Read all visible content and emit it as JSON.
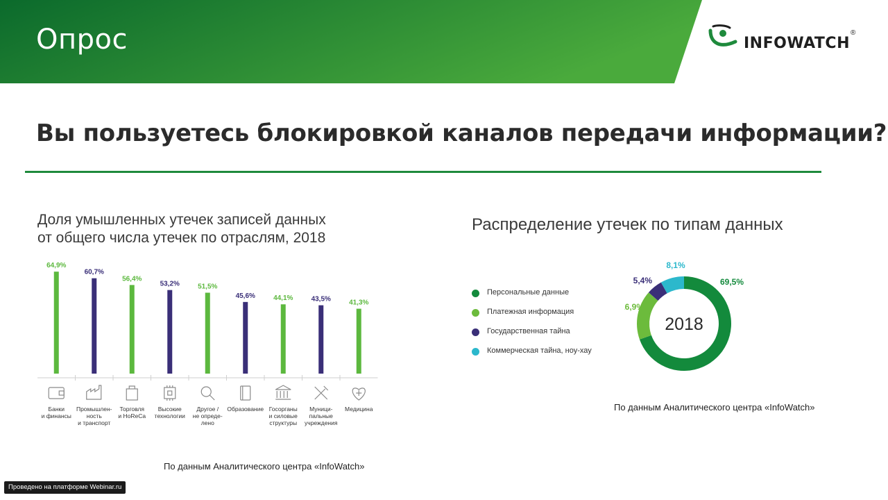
{
  "slide": {
    "title": "Опрос",
    "question": "Вы пользуетесь блокировкой каналов передачи информации?"
  },
  "logo": {
    "text": "INFOWATCH",
    "registered": "®",
    "icon": "infowatch-eye-icon"
  },
  "colors": {
    "header_green_dark": "#0b6a2c",
    "header_green_light": "#4aaa3c",
    "bar_green": "#5cb83e",
    "bar_navy": "#3a2f78",
    "donut_dark_green": "#138a3c",
    "donut_light_green": "#6cbb3c",
    "donut_navy": "#3a2f78",
    "donut_cyan": "#2cb8cc"
  },
  "chart_data": [
    {
      "type": "bar",
      "title": "Доля умышленных утечек записей данных\nот общего числа утечек по отраслям, 2018",
      "categories": [
        "Банки\nи финансы",
        "Промышлен-\nность\nи транспорт",
        "Торговля\nи HoReCa",
        "Высокие\nтехнологии",
        "Другое /\nне опреде-\nлено",
        "Образование",
        "Госорганы\nи силовые\nструктуры",
        "Муници-\nпальные\nучреждения",
        "Медицина"
      ],
      "category_icons": [
        "wallet-icon",
        "factory-icon",
        "shopping-bag-icon",
        "chip-icon",
        "magnifier-icon",
        "book-icon",
        "government-building-icon",
        "tools-icon",
        "medical-heart-icon"
      ],
      "values": [
        64.9,
        60.7,
        56.4,
        53.2,
        51.5,
        45.6,
        44.1,
        43.5,
        41.3
      ],
      "value_labels": [
        "64,9%",
        "60,7%",
        "56,4%",
        "53,2%",
        "51,5%",
        "45,6%",
        "44,1%",
        "43,5%",
        "41,3%"
      ],
      "bar_colors": [
        "green",
        "navy",
        "green",
        "navy",
        "green",
        "navy",
        "green",
        "navy",
        "green"
      ],
      "ylim": [
        0,
        70
      ],
      "grid": false,
      "source": "По данным Аналитического центра «InfoWatch»"
    },
    {
      "type": "pie",
      "title": "Распределение утечек по типам данных",
      "center_label": "2018",
      "slices": [
        {
          "name": "Персональные данные",
          "value": 69.5,
          "label": "69,5%",
          "color": "#138a3c"
        },
        {
          "name": "Платежная информация",
          "value": 16.9,
          "label": "16,9%",
          "color": "#6cbb3c"
        },
        {
          "name": "Государственная тайна",
          "value": 5.4,
          "label": "5,4%",
          "color": "#3a2f78"
        },
        {
          "name": "Коммерческая тайна, ноу-хау",
          "value": 8.1,
          "label": "8,1%",
          "color": "#2cb8cc"
        }
      ],
      "legend_position": "left",
      "source": "По данным Аналитического центра «InfoWatch»"
    }
  ],
  "platform_badge": "Проведено на платформе Webinar.ru"
}
